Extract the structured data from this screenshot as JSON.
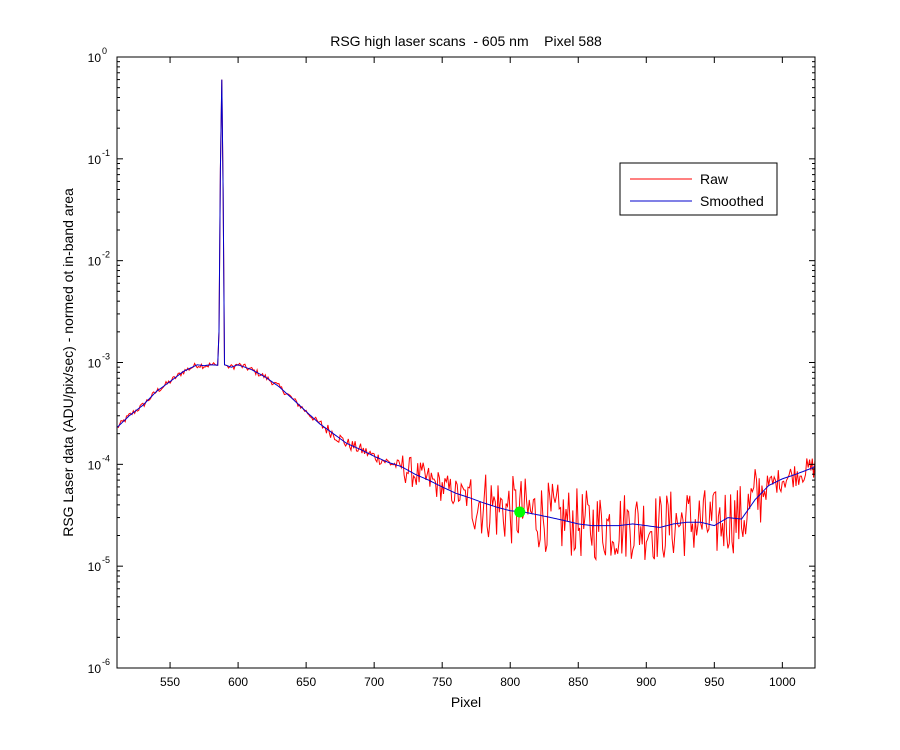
{
  "chart_data": {
    "type": "line",
    "title": "RSG high laser scans  - 605 nm    Pixel 588",
    "xlabel": "Pixel",
    "ylabel": "RSG Laser data (ADU/pix/sec) - normed ot in-band area",
    "xlim": [
      511,
      1024
    ],
    "ylim": [
      1e-06,
      1
    ],
    "yscale": "log",
    "grid": false,
    "legend_position": "top-right",
    "x_ticks": [
      550,
      600,
      650,
      700,
      750,
      800,
      850,
      900,
      950,
      1000
    ],
    "x_tick_labels": [
      "550",
      "600",
      "650",
      "700",
      "750",
      "800",
      "850",
      "900",
      "950",
      "1000"
    ],
    "y_ticks": [
      {
        "value": 1,
        "base": "10",
        "exp": "0"
      },
      {
        "value": 0.1,
        "base": "10",
        "exp": "-1"
      },
      {
        "value": 0.01,
        "base": "10",
        "exp": "-2"
      },
      {
        "value": 0.001,
        "base": "10",
        "exp": "-3"
      },
      {
        "value": 0.0001,
        "base": "10",
        "exp": "-4"
      },
      {
        "value": 1e-05,
        "base": "10",
        "exp": "-5"
      },
      {
        "value": 1e-06,
        "base": "10",
        "exp": "-6"
      }
    ],
    "series": [
      {
        "name": "Raw",
        "color": "#ff0000",
        "x": [
          511,
          520,
          530,
          540,
          550,
          560,
          570,
          575,
          580,
          585,
          586,
          587,
          588,
          589,
          590,
          595,
          600,
          610,
          620,
          630,
          640,
          650,
          660,
          670,
          680,
          690,
          700,
          710,
          720,
          730,
          740,
          750,
          760,
          770,
          780,
          790,
          800,
          810,
          820,
          830,
          840,
          850,
          860,
          870,
          880,
          890,
          900,
          910,
          920,
          930,
          940,
          950,
          960,
          970,
          980,
          990,
          1000,
          1010,
          1020,
          1024
        ],
        "y": [
          0.00023,
          0.0003,
          0.00038,
          0.00052,
          0.00065,
          0.00082,
          0.00095,
          0.00093,
          0.00095,
          0.00094,
          0.002,
          0.08,
          0.6,
          0.05,
          0.00095,
          0.0009,
          0.00095,
          0.00085,
          0.00072,
          0.00058,
          0.00044,
          0.00033,
          0.00025,
          0.0002,
          0.00016,
          0.00014,
          0.00012,
          0.000105,
          9.5e-05,
          8e-05,
          7e-05,
          6e-05,
          5.2e-05,
          4.7e-05,
          4.2e-05,
          3.8e-05,
          3.5e-05,
          3.4e-05,
          3.2e-05,
          3e-05,
          2.8e-05,
          2.6e-05,
          2.5e-05,
          2.5e-05,
          2.5e-05,
          2.6e-05,
          2.5e-05,
          2.4e-05,
          2.6e-05,
          2.7e-05,
          2.7e-05,
          2.5e-05,
          3e-05,
          2.9e-05,
          4.5e-05,
          6.2e-05,
          7.2e-05,
          8e-05,
          9e-05,
          9.5e-05
        ],
        "noise_floor": 1e-05
      },
      {
        "name": "Smoothed",
        "color": "#0000cc",
        "x": [
          511,
          520,
          530,
          540,
          550,
          560,
          570,
          575,
          580,
          585,
          586,
          587,
          588,
          589,
          590,
          595,
          600,
          610,
          620,
          630,
          640,
          650,
          660,
          670,
          680,
          690,
          700,
          710,
          720,
          730,
          740,
          750,
          760,
          770,
          780,
          790,
          800,
          810,
          820,
          830,
          840,
          850,
          860,
          870,
          880,
          890,
          900,
          910,
          920,
          930,
          940,
          950,
          960,
          970,
          980,
          990,
          1000,
          1010,
          1020,
          1024
        ],
        "y": [
          0.00023,
          0.0003,
          0.00038,
          0.00052,
          0.00065,
          0.00082,
          0.00095,
          0.00093,
          0.00095,
          0.00094,
          0.002,
          0.08,
          0.6,
          0.05,
          0.00095,
          0.0009,
          0.00095,
          0.00085,
          0.00072,
          0.00058,
          0.00044,
          0.00033,
          0.00025,
          0.0002,
          0.00016,
          0.00014,
          0.00012,
          0.000105,
          9.5e-05,
          8e-05,
          7e-05,
          6e-05,
          5.2e-05,
          4.7e-05,
          4.2e-05,
          3.8e-05,
          3.5e-05,
          3.4e-05,
          3.2e-05,
          3e-05,
          2.8e-05,
          2.6e-05,
          2.5e-05,
          2.5e-05,
          2.5e-05,
          2.6e-05,
          2.5e-05,
          2.4e-05,
          2.6e-05,
          2.7e-05,
          2.7e-05,
          2.5e-05,
          3e-05,
          2.9e-05,
          4.5e-05,
          6.2e-05,
          7.2e-05,
          8e-05,
          9e-05,
          9.5e-05
        ]
      }
    ],
    "marker": {
      "x": 807,
      "y": 3.4e-05,
      "color": "#00ff00"
    }
  }
}
